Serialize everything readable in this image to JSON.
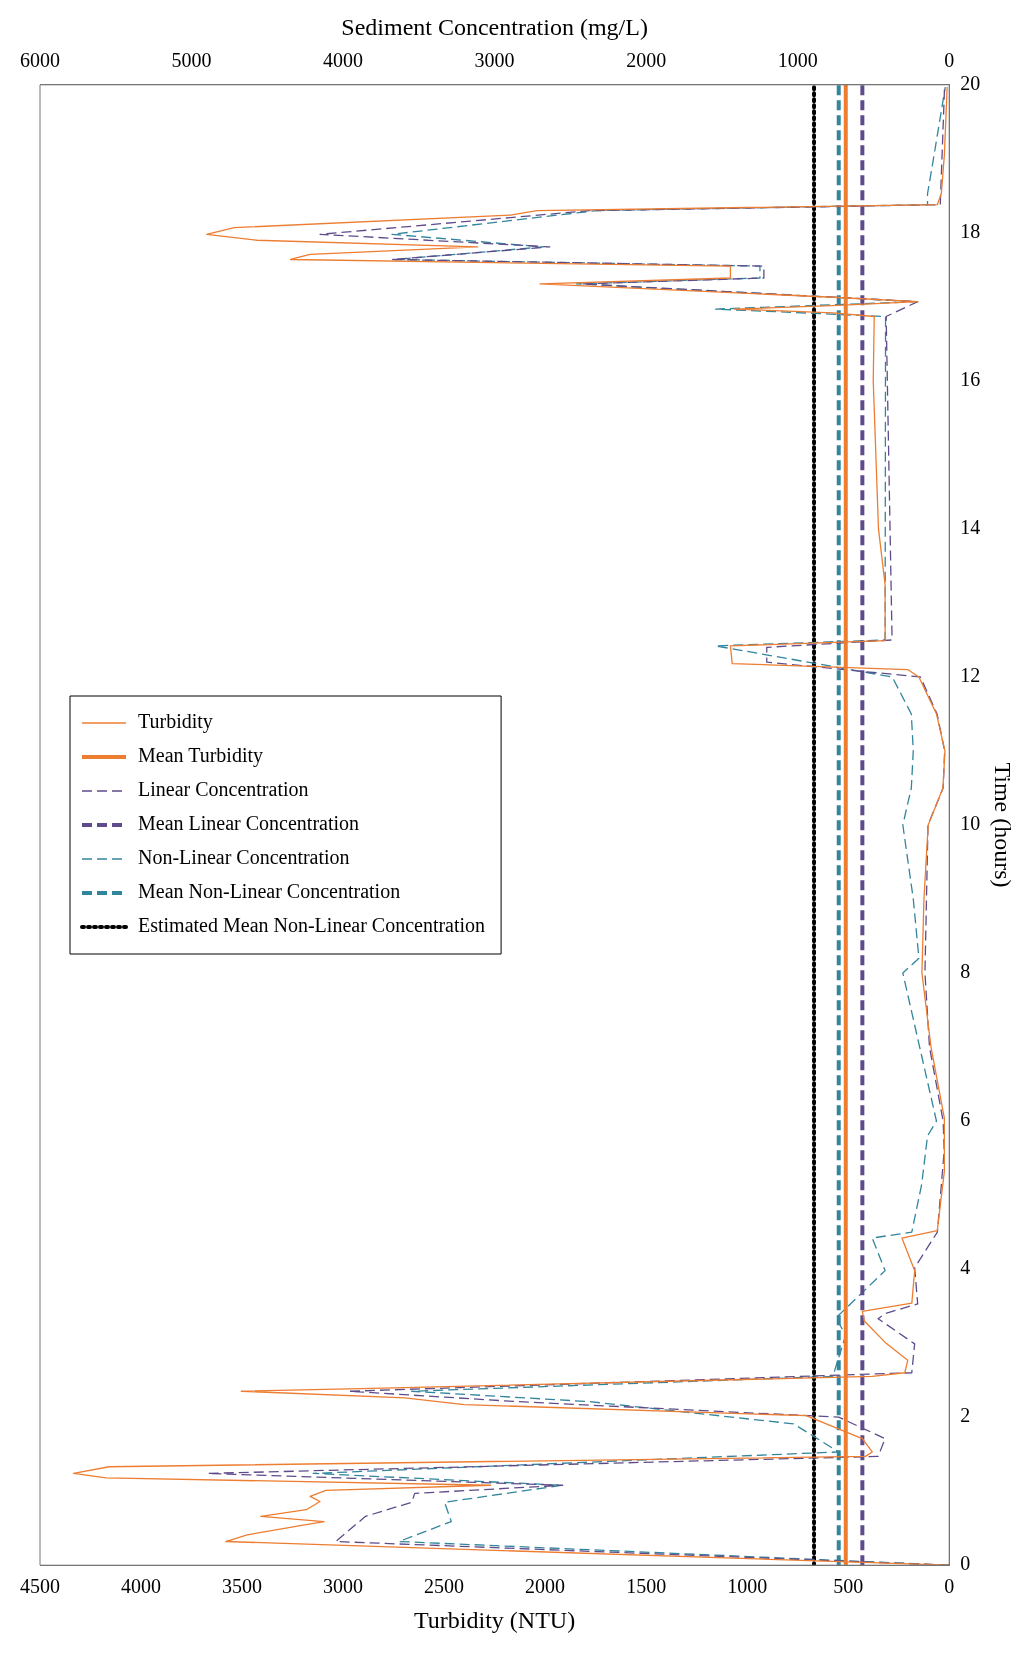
{
  "chart_data": {
    "type": "line",
    "orientation": "horizontal",
    "xlabel": "Turbidity (NTU)",
    "x2label": "Sediment Concentration (mg/L)",
    "ylabel": "Time (hours)",
    "xlim": [
      4500,
      0
    ],
    "xticks": [
      0,
      500,
      1000,
      1500,
      2000,
      2500,
      3000,
      3500,
      4000,
      4500
    ],
    "x2lim": [
      6000,
      0
    ],
    "x2ticks": [
      0,
      1000,
      2000,
      3000,
      4000,
      5000,
      6000
    ],
    "ylim": [
      0,
      20
    ],
    "yticks": [
      0,
      2,
      4,
      6,
      8,
      10,
      12,
      14,
      16,
      18,
      20
    ],
    "grid": false,
    "legend": "left",
    "marker": "none",
    "series": [
      {
        "name": "Turbidity",
        "color": "#ed7d31",
        "line_style": "solid",
        "x": [
          0,
          0.32,
          0.41,
          0.59,
          0.66,
          0.75,
          0.86,
          0.93,
          1.01,
          1.08,
          1.18,
          1.24,
          1.33,
          1.47,
          1.53,
          1.71,
          2.02,
          2.17,
          2.26,
          2.35,
          2.39,
          2.55,
          2.6,
          2.77,
          3.01,
          3.3,
          3.43,
          3.54,
          3.98,
          4.42,
          4.52,
          5.32,
          6.04,
          7,
          8,
          9,
          10,
          10.5,
          11,
          11.5,
          12,
          12.1,
          12.18,
          12.42,
          12.49,
          13.24,
          14,
          16,
          16.87,
          16.92,
          16.97,
          17.02,
          17.07,
          17.13,
          17.31,
          17.39,
          17.55,
          17.64,
          17.71,
          17.81,
          17.9,
          17.98,
          18.07,
          18.24,
          18.3,
          18.38,
          18.53,
          19.05,
          19.97
        ],
        "values": [
          0,
          3580,
          3475,
          3094,
          3407,
          3182,
          3114,
          3163,
          3085,
          2270,
          4173,
          4334,
          4158,
          415,
          381,
          430,
          708,
          2401,
          2694,
          3504,
          2855,
          381,
          220,
          205,
          317,
          420,
          430,
          185,
          171,
          234,
          59,
          24,
          24,
          90,
          135,
          125,
          104,
          31,
          21,
          63,
          150,
          205,
          1074,
          1083,
          317,
          317,
          350,
          376,
          371,
          576,
          1064,
          547,
          156,
          576,
          2025,
          1083,
          1083,
          3260,
          3163,
          2334,
          3426,
          3675,
          3539,
          2172,
          2041,
          59,
          39,
          24,
          10
        ]
      },
      {
        "name": "Mean Turbidity",
        "color": "#ed7d31",
        "line_style": "solid",
        "x": [
          0,
          20
        ],
        "values": [
          512,
          512
        ]
      },
      {
        "name": "Linear Concentration",
        "color": "#5f4b8b",
        "axis": "x2",
        "line_style": "dashed",
        "x": [
          0,
          0.32,
          0.66,
          0.85,
          0.97,
          1.08,
          1.24,
          1.47,
          1.71,
          2.0,
          2.21,
          2.35,
          2.6,
          2.99,
          3.33,
          3.4,
          3.53,
          4.02,
          4.5,
          5.6,
          6,
          7,
          8,
          9,
          10,
          10.5,
          11,
          11.5,
          12,
          12.2,
          12.4,
          12.5,
          16.87,
          17.07,
          17.31,
          17.39,
          17.55,
          17.64,
          17.81,
          17.98,
          18.3,
          18.38,
          20
        ],
        "values": [
          0,
          4048,
          3852,
          3547,
          3527,
          2551,
          4894,
          469,
          423,
          729,
          2850,
          3957,
          247,
          228,
          469,
          423,
          208,
          228,
          78,
          33,
          40,
          130,
          160,
          150,
          140,
          40,
          30,
          80,
          190,
          1204,
          1204,
          377,
          416,
          208,
          2421,
          1223,
          1223,
          3677,
          2636,
          4152,
          2375,
          59,
          30
        ]
      },
      {
        "name": "Mean Linear Concentration",
        "color": "#5f4b8b",
        "axis": "x2",
        "line_style": "dashed",
        "x": [
          0,
          20
        ],
        "values": [
          573,
          573
        ]
      },
      {
        "name": "Non-Linear Concentration",
        "color": "#31859c",
        "axis": "x2",
        "line_style": "dashed",
        "x": [
          0,
          0.32,
          0.59,
          0.85,
          1.08,
          1.24,
          1.53,
          1.91,
          2.21,
          2.35,
          2.55,
          3.11,
          3.34,
          3.98,
          4.42,
          4.5,
          5.14,
          5.8,
          6,
          7,
          8,
          8.2,
          9,
          10,
          10.5,
          11,
          11.5,
          12,
          12.42,
          12.5,
          16.87,
          16.97,
          17.07,
          17.31,
          17.39,
          17.55,
          17.64,
          17.81,
          17.98,
          18.3,
          18.38,
          18.53,
          19,
          19.97
        ],
        "values": [
          0,
          3631,
          3286,
          3330,
          2551,
          4197,
          729,
          1028,
          2375,
          3547,
          768,
          683,
          748,
          423,
          508,
          247,
          182,
          143,
          84,
          195,
          306,
          200,
          237,
          306,
          250,
          237,
          250,
          376,
          1542,
          423,
          420,
          1542,
          208,
          2460,
          1249,
          1249,
          3655,
          2681,
          3677,
          2330,
          143,
          143,
          104,
          26
        ]
      },
      {
        "name": "Mean Non-Linear Concentration",
        "color": "#31859c",
        "axis": "x2",
        "line_style": "dashed",
        "x": [
          0,
          20
        ],
        "values": [
          729,
          729
        ]
      },
      {
        "name": "Estimated Mean Non-Linear Concentration",
        "color": "#000000",
        "axis": "x2",
        "line_style": "dotted",
        "x": [
          0,
          20
        ],
        "values": [
          892,
          892
        ]
      }
    ]
  }
}
